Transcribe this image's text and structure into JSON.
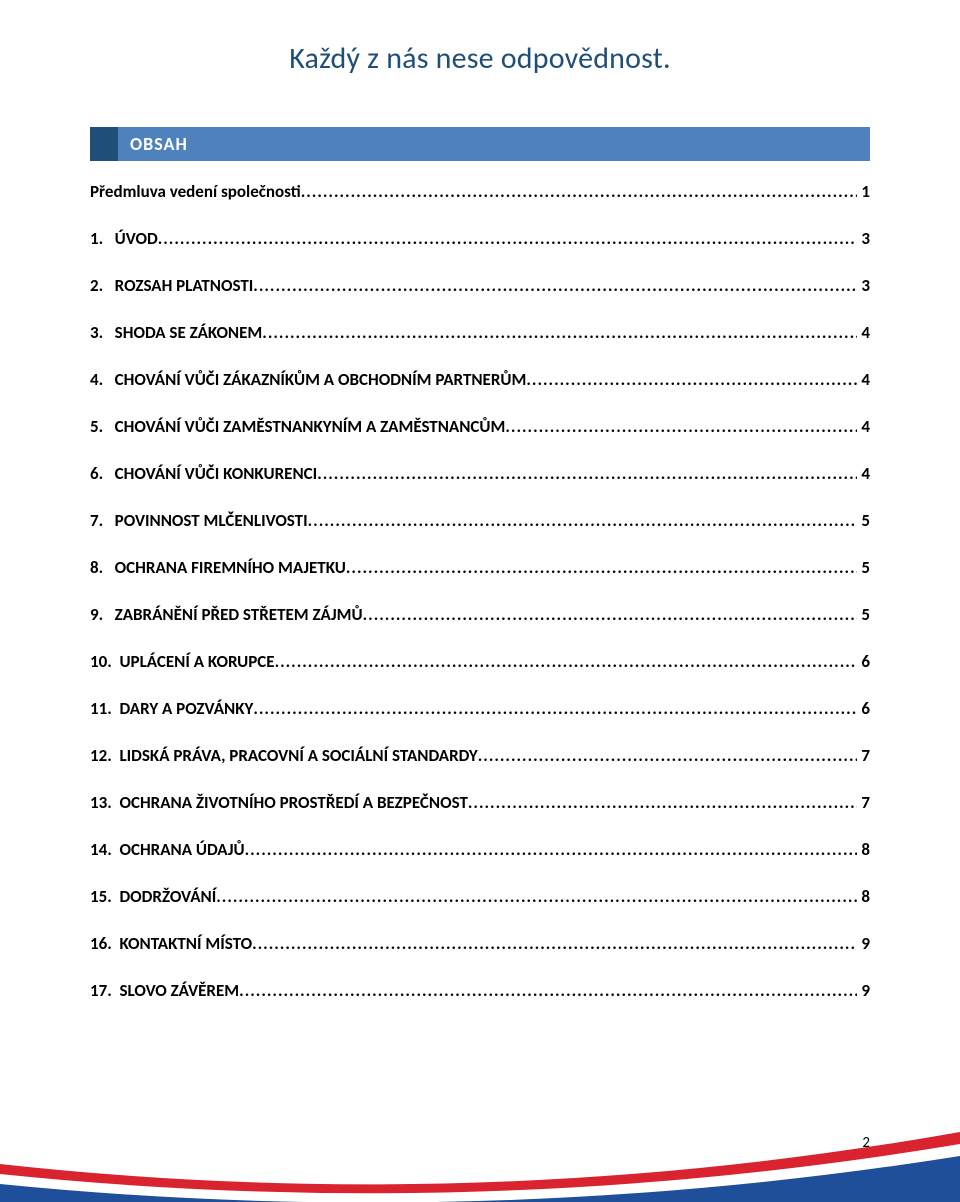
{
  "header": {
    "title": "Každý z nás nese odpovědnost.",
    "title_color": "#1f4e79",
    "title_fontsize": 30
  },
  "section_bar": {
    "label": "OBSAH",
    "bg_color": "#4f81bd",
    "accent_color": "#1f4e79",
    "text_color": "#ffffff",
    "fontsize": 18
  },
  "toc": {
    "fontsize": 17,
    "font_weight": "bold",
    "color": "#000000",
    "items": [
      {
        "label": "Předmluva vedení společnosti",
        "page": "1",
        "gap_class": "gap-a"
      },
      {
        "label": "1.   ÚVOD",
        "page": "3",
        "gap_class": "gap-b"
      },
      {
        "label": "2.   ROZSAH PLATNOSTI",
        "page": "3",
        "gap_class": "gap-b"
      },
      {
        "label": "3.   SHODA SE ZÁKONEM",
        "page": "4",
        "gap_class": "gap-b"
      },
      {
        "label": "4.   CHOVÁNÍ VŮČI ZÁKAZNÍKŮM A OBCHODNÍM PARTNERŮM",
        "page": "4",
        "gap_class": "gap-b"
      },
      {
        "label": "5.   CHOVÁNÍ VŮČI ZAMĚSTNANKYNÍM A ZAMĚSTNANCŮM",
        "page": "4",
        "gap_class": "gap-b"
      },
      {
        "label": "6.   CHOVÁNÍ VŮČI KONKURENCI",
        "page": "4",
        "gap_class": "gap-b"
      },
      {
        "label": "7.   POVINNOST MLČENLIVOSTI",
        "page": "5",
        "gap_class": "gap-b"
      },
      {
        "label": "8.   OCHRANA FIREMNÍHO MAJETKU",
        "page": "5",
        "gap_class": "gap-b"
      },
      {
        "label": "9.   ZABRÁNĚNÍ PŘED STŘETEM ZÁJMŮ",
        "page": "5",
        "gap_class": "gap-b"
      },
      {
        "label": "10.  UPLÁCENÍ A KORUPCE",
        "page": "6",
        "gap_class": "gap-b"
      },
      {
        "label": "11.  DARY A POZVÁNKY",
        "page": "6",
        "gap_class": "gap-b"
      },
      {
        "label": "12.  LIDSKÁ PRÁVA, PRACOVNÍ A SOCIÁLNÍ STANDARDY",
        "page": "7",
        "gap_class": "gap-b"
      },
      {
        "label": "13.  OCHRANA ŽIVOTNÍHO PROSTŘEDÍ A BEZPEČNOST",
        "page": "7",
        "gap_class": "gap-b"
      },
      {
        "label": "14.  OCHRANA ÚDAJŮ",
        "page": "8",
        "gap_class": "gap-b"
      },
      {
        "label": "15.  DODRŽOVÁNÍ",
        "page": "8",
        "gap_class": "gap-b"
      },
      {
        "label": "16.  KONTAKTNÍ MÍSTO",
        "page": "9",
        "gap_class": "gap-b"
      },
      {
        "label": "17.  SLOVO ZÁVĚREM",
        "page": "9",
        "gap_class": "gap-b"
      }
    ]
  },
  "page_number": "2",
  "footer_curves": {
    "red": "#d9232e",
    "blue": "#1f4e9b",
    "white": "#ffffff"
  }
}
